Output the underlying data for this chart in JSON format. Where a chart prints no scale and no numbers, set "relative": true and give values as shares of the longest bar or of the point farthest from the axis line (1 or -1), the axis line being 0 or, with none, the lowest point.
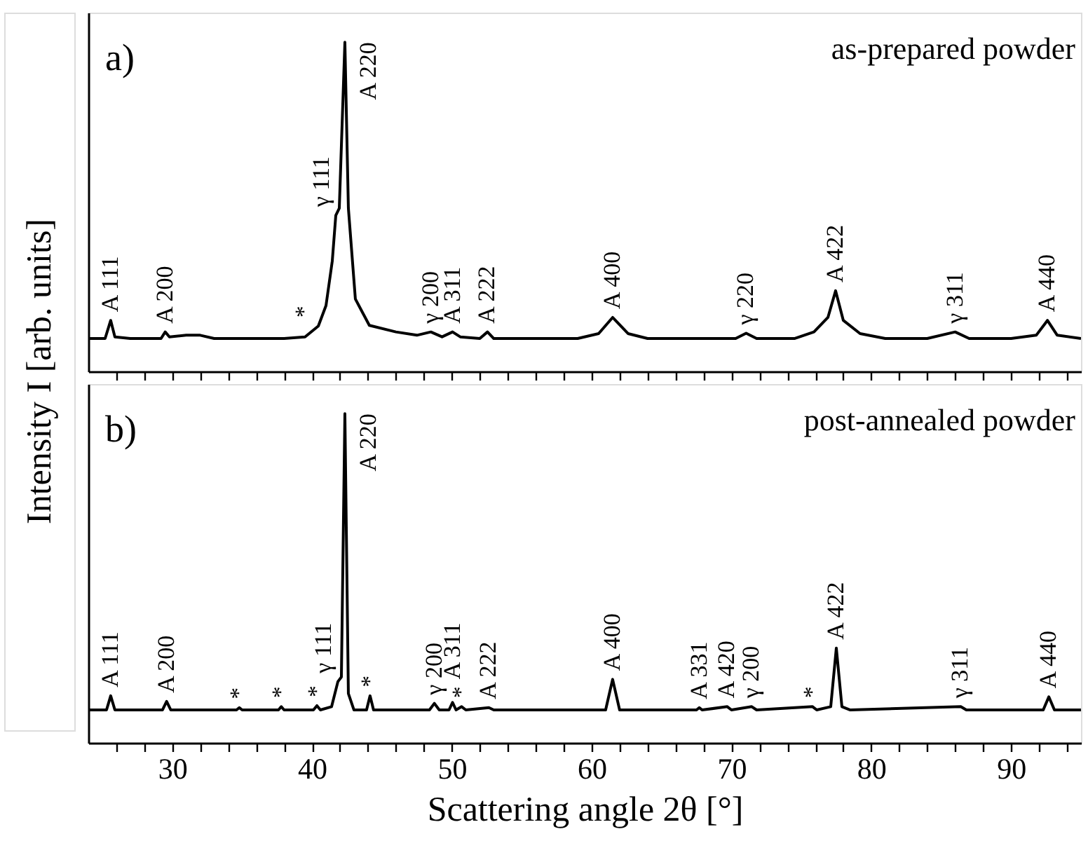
{
  "chart_data": [
    {
      "type": "line",
      "title": "a)",
      "subtitle": "as-prepared powder",
      "ylabel": "Intensity I [arb. units]",
      "relative": true,
      "tick_labels": false,
      "grid": false,
      "marker": "none",
      "line_style": "solid",
      "xlim": [
        24,
        95
      ],
      "xticks": [
        {
          "value": 26,
          "label": null
        },
        {
          "value": 28,
          "label": null
        },
        30,
        {
          "value": 32,
          "label": null
        },
        {
          "value": 34,
          "label": null
        },
        {
          "value": 36,
          "label": null
        },
        {
          "value": 38,
          "label": null
        },
        40,
        {
          "value": 42,
          "label": null
        },
        {
          "value": 44,
          "label": null
        },
        {
          "value": 46,
          "label": null
        },
        {
          "value": 48,
          "label": null
        },
        50,
        {
          "value": 52,
          "label": null
        },
        {
          "value": 54,
          "label": null
        },
        {
          "value": 56,
          "label": null
        },
        {
          "value": 58,
          "label": null
        },
        60,
        {
          "value": 62,
          "label": null
        },
        {
          "value": 64,
          "label": null
        },
        {
          "value": 66,
          "label": null
        },
        {
          "value": 68,
          "label": null
        },
        70,
        {
          "value": 72,
          "label": null
        },
        {
          "value": 74,
          "label": null
        },
        {
          "value": 76,
          "label": null
        },
        {
          "value": 78,
          "label": null
        },
        80,
        {
          "value": 82,
          "label": null
        },
        {
          "value": 84,
          "label": null
        },
        {
          "value": 86,
          "label": null
        },
        {
          "value": 88,
          "label": null
        },
        90,
        {
          "value": 92,
          "label": null
        },
        {
          "value": 94,
          "label": null
        }
      ],
      "x": [
        24,
        25.2,
        25.6,
        25.9,
        27,
        29.2,
        29.5,
        29.8,
        31,
        32,
        33,
        36,
        38,
        39.5,
        40.45,
        41.0,
        41.45,
        41.7,
        41.95,
        42.35,
        42.6,
        43.1,
        44.1,
        46.0,
        47.5,
        48.5,
        49.3,
        50.05,
        50.6,
        52.0,
        52.55,
        53.0,
        56,
        59,
        60.5,
        61.5,
        62.6,
        64,
        68,
        70.3,
        71.05,
        71.8,
        74.5,
        75.9,
        76.9,
        77.45,
        78.0,
        79.2,
        81,
        84,
        86.0,
        87,
        90,
        91.8,
        92.6,
        93.3,
        95
      ],
      "series": [
        {
          "color": "#000000",
          "values": [
            0.1,
            0.1,
            0.155,
            0.105,
            0.1,
            0.1,
            0.12,
            0.105,
            0.11,
            0.11,
            0.1,
            0.1,
            0.1,
            0.105,
            0.138,
            0.2,
            0.336,
            0.474,
            0.496,
            1.0,
            0.496,
            0.22,
            0.14,
            0.12,
            0.11,
            0.12,
            0.105,
            0.12,
            0.105,
            0.1,
            0.12,
            0.1,
            0.1,
            0.1,
            0.115,
            0.164,
            0.115,
            0.1,
            0.1,
            0.1,
            0.116,
            0.1,
            0.1,
            0.12,
            0.164,
            0.245,
            0.155,
            0.115,
            0.1,
            0.1,
            0.12,
            0.1,
            0.1,
            0.11,
            0.155,
            0.11,
            0.1
          ]
        }
      ],
      "annotations": [
        {
          "text": "A 111",
          "x": 25.6,
          "y": 0.155
        },
        {
          "text": "A 200",
          "x": 29.5,
          "y": 0.12
        },
        {
          "text": "*",
          "x": 40.45,
          "y": 0.138
        },
        {
          "text": "γ 111",
          "x": 41.7,
          "y": 0.474
        },
        {
          "text": "A 220",
          "x": 42.35,
          "y": 1.0
        },
        {
          "text": "γ 200",
          "x": 48.5,
          "y": 0.12
        },
        {
          "text": "A 311",
          "x": 50.05,
          "y": 0.12
        },
        {
          "text": "A 222",
          "x": 52.55,
          "y": 0.12
        },
        {
          "text": "A 400",
          "x": 61.5,
          "y": 0.164
        },
        {
          "text": "γ 220",
          "x": 71.05,
          "y": 0.116
        },
        {
          "text": "A 422",
          "x": 77.45,
          "y": 0.245
        },
        {
          "text": "γ 311",
          "x": 86.0,
          "y": 0.12
        },
        {
          "text": "A 440",
          "x": 92.6,
          "y": 0.155
        }
      ]
    },
    {
      "type": "line",
      "title": "b)",
      "subtitle": "post-annealed powder",
      "xlabel": "Scattering angle 2θ [°]",
      "relative": true,
      "tick_labels": "x",
      "grid": false,
      "marker": "none",
      "line_style": "solid",
      "xlim": [
        24,
        95
      ],
      "xticks": [
        {
          "value": 26,
          "label": null
        },
        {
          "value": 28,
          "label": null
        },
        30,
        {
          "value": 32,
          "label": null
        },
        {
          "value": 34,
          "label": null
        },
        {
          "value": 36,
          "label": null
        },
        {
          "value": 38,
          "label": null
        },
        40,
        {
          "value": 42,
          "label": null
        },
        {
          "value": 44,
          "label": null
        },
        {
          "value": 46,
          "label": null
        },
        {
          "value": 48,
          "label": null
        },
        50,
        {
          "value": 52,
          "label": null
        },
        {
          "value": 54,
          "label": null
        },
        {
          "value": 56,
          "label": null
        },
        {
          "value": 58,
          "label": null
        },
        60,
        {
          "value": 62,
          "label": null
        },
        {
          "value": 64,
          "label": null
        },
        {
          "value": 66,
          "label": null
        },
        {
          "value": 68,
          "label": null
        },
        70,
        {
          "value": 72,
          "label": null
        },
        {
          "value": 74,
          "label": null
        },
        {
          "value": 76,
          "label": null
        },
        {
          "value": 78,
          "label": null
        },
        80,
        {
          "value": 82,
          "label": null
        },
        {
          "value": 84,
          "label": null
        },
        {
          "value": 86,
          "label": null
        },
        {
          "value": 88,
          "label": null
        },
        90,
        {
          "value": 92,
          "label": null
        },
        {
          "value": 94,
          "label": null
        }
      ],
      "x": [
        24,
        25.3,
        25.6,
        25.9,
        29.3,
        29.6,
        29.9,
        34.6,
        34.8,
        35.0,
        37.6,
        37.8,
        38.0,
        40.1,
        40.35,
        40.6,
        41.4,
        41.85,
        42.1,
        42.35,
        42.6,
        43.0,
        43.9,
        44.15,
        44.4,
        48.4,
        48.75,
        49.1,
        49.8,
        50.05,
        50.3,
        50.7,
        51,
        52.65,
        53,
        61.0,
        61.5,
        62.0,
        67.5,
        67.7,
        67.9,
        69.7,
        70,
        71.45,
        71.8,
        75.8,
        76.1,
        77.1,
        77.5,
        77.9,
        78.5,
        86.4,
        86.8,
        92.3,
        92.7,
        93.1,
        95
      ],
      "series": [
        {
          "color": "#000000",
          "values": [
            0.1,
            0.1,
            0.143,
            0.1,
            0.1,
            0.126,
            0.1,
            0.1,
            0.107,
            0.1,
            0.1,
            0.11,
            0.1,
            0.1,
            0.113,
            0.1,
            0.11,
            0.186,
            0.2,
            1.0,
            0.15,
            0.1,
            0.1,
            0.143,
            0.1,
            0.1,
            0.12,
            0.1,
            0.1,
            0.123,
            0.1,
            0.11,
            0.1,
            0.107,
            0.1,
            0.1,
            0.193,
            0.1,
            0.1,
            0.107,
            0.1,
            0.11,
            0.1,
            0.11,
            0.1,
            0.11,
            0.1,
            0.11,
            0.288,
            0.11,
            0.1,
            0.11,
            0.1,
            0.1,
            0.14,
            0.1,
            0.1
          ]
        }
      ],
      "annotations": [
        {
          "text": "A 111",
          "x": 25.6,
          "y": 0.143
        },
        {
          "text": "A 200",
          "x": 29.6,
          "y": 0.126
        },
        {
          "text": "*",
          "x": 34.8,
          "y": 0.107
        },
        {
          "text": "*",
          "x": 37.8,
          "y": 0.11
        },
        {
          "text": "*",
          "x": 40.35,
          "y": 0.113
        },
        {
          "text": "γ 111",
          "x": 41.85,
          "y": 0.186
        },
        {
          "text": "A 220",
          "x": 42.35,
          "y": 1.0
        },
        {
          "text": "*",
          "x": 44.15,
          "y": 0.143
        },
        {
          "text": "γ 200",
          "x": 48.75,
          "y": 0.12
        },
        {
          "text": "A 311",
          "x": 50.05,
          "y": 0.123
        },
        {
          "text": "*",
          "x": 50.7,
          "y": 0.11
        },
        {
          "text": "A 222",
          "x": 52.65,
          "y": 0.107
        },
        {
          "text": "A 400",
          "x": 61.5,
          "y": 0.193
        },
        {
          "text": "A 331",
          "x": 67.7,
          "y": 0.107
        },
        {
          "text": "A 420",
          "x": 69.7,
          "y": 0.11
        },
        {
          "text": "γ 200",
          "x": 71.45,
          "y": 0.11
        },
        {
          "text": "*",
          "x": 75.8,
          "y": 0.11
        },
        {
          "text": "A 422",
          "x": 77.5,
          "y": 0.288
        },
        {
          "text": "γ 311",
          "x": 86.4,
          "y": 0.11
        },
        {
          "text": "A 440",
          "x": 92.7,
          "y": 0.14
        }
      ]
    }
  ]
}
